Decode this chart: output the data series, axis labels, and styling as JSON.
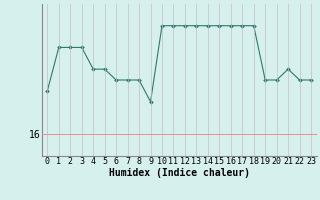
{
  "x": [
    0,
    1,
    2,
    3,
    4,
    5,
    6,
    7,
    8,
    9,
    10,
    11,
    12,
    13,
    14,
    15,
    16,
    17,
    18,
    19,
    20,
    21,
    22,
    23
  ],
  "y": [
    20,
    24,
    24,
    24,
    22,
    22,
    21,
    21,
    21,
    19,
    26,
    26,
    26,
    26,
    26,
    26,
    26,
    26,
    26,
    21,
    21,
    22,
    21,
    21
  ],
  "ylim": [
    14,
    28
  ],
  "yticks": [
    16
  ],
  "xlabel": "Humidex (Indice chaleur)",
  "bg_color": "#d5f0ed",
  "line_color": "#2d7a6e",
  "marker_color": "#2d7a6e",
  "grid_color_v": "#c9bac9",
  "grid_color_h": "#e89090",
  "axis_color": "#888888",
  "font_color": "#000000",
  "xlabel_fontsize": 7,
  "tick_fontsize": 6
}
